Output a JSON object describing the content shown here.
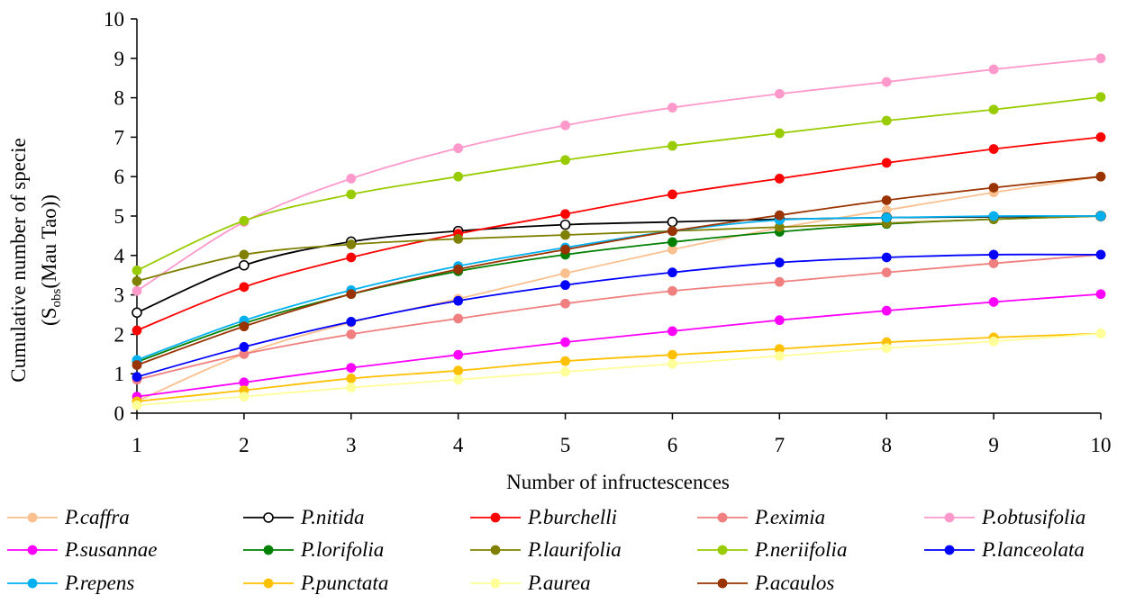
{
  "chart_data": {
    "type": "line",
    "title": "",
    "xlabel": "Number of infructescences",
    "ylabel_line1": "Cumulative number of specie",
    "ylabel_line2_prefix": "(S",
    "ylabel_line2_sub": "obs",
    "ylabel_line2_suffix": "(Mau Tao))",
    "x": [
      1,
      2,
      3,
      4,
      5,
      6,
      7,
      8,
      9,
      10
    ],
    "xlim": [
      1,
      10
    ],
    "ylim": [
      0,
      10
    ],
    "x_ticks": [
      "1",
      "2",
      "3",
      "4",
      "5",
      "6",
      "7",
      "8",
      "9",
      "10"
    ],
    "y_ticks": [
      "0",
      "1",
      "2",
      "3",
      "4",
      "5",
      "6",
      "7",
      "8",
      "9",
      "10"
    ],
    "grid": false,
    "legend_position": "bottom",
    "series": [
      {
        "name": "P.caffra",
        "color": "#FAC090",
        "hollow": false,
        "values": [
          0.3,
          1.5,
          2.3,
          2.9,
          3.55,
          4.15,
          4.7,
          5.15,
          5.6,
          6.0
        ]
      },
      {
        "name": "P.nitida",
        "color": "#000000",
        "hollow": true,
        "values": [
          2.55,
          3.75,
          4.35,
          4.62,
          4.78,
          4.85,
          4.92,
          4.96,
          4.98,
          5.0
        ]
      },
      {
        "name": "P.burchelli",
        "color": "#FF0000",
        "hollow": false,
        "values": [
          2.1,
          3.2,
          3.95,
          4.55,
          5.05,
          5.55,
          5.95,
          6.35,
          6.7,
          7.0
        ]
      },
      {
        "name": "P.eximia",
        "color": "#F08080",
        "hollow": false,
        "values": [
          0.85,
          1.5,
          2.0,
          2.4,
          2.78,
          3.1,
          3.33,
          3.57,
          3.8,
          4.02
        ]
      },
      {
        "name": "P.obtusifolia",
        "color": "#FF99CC",
        "hollow": false,
        "values": [
          3.1,
          4.85,
          5.95,
          6.72,
          7.3,
          7.75,
          8.1,
          8.4,
          8.72,
          9.0
        ]
      },
      {
        "name": "P.susannae",
        "color": "#FF00FF",
        "hollow": false,
        "values": [
          0.42,
          0.78,
          1.15,
          1.48,
          1.8,
          2.08,
          2.36,
          2.6,
          2.82,
          3.02
        ]
      },
      {
        "name": "P.lorifolia",
        "color": "#008000",
        "hollow": false,
        "values": [
          1.3,
          2.28,
          3.02,
          3.6,
          4.02,
          4.34,
          4.6,
          4.8,
          4.92,
          5.0
        ]
      },
      {
        "name": "P.laurifolia",
        "color": "#808000",
        "hollow": false,
        "values": [
          3.35,
          4.02,
          4.28,
          4.42,
          4.52,
          4.62,
          4.72,
          4.82,
          4.92,
          5.0
        ]
      },
      {
        "name": "P.neriifolia",
        "color": "#99CC00",
        "hollow": false,
        "values": [
          3.62,
          4.88,
          5.55,
          6.0,
          6.42,
          6.78,
          7.1,
          7.42,
          7.7,
          8.02
        ]
      },
      {
        "name": "P.lanceolata",
        "color": "#0000FF",
        "hollow": false,
        "values": [
          0.92,
          1.68,
          2.32,
          2.85,
          3.25,
          3.57,
          3.82,
          3.95,
          4.02,
          4.02
        ]
      },
      {
        "name": "P.repens",
        "color": "#00B0F0",
        "hollow": false,
        "values": [
          1.35,
          2.35,
          3.12,
          3.73,
          4.2,
          4.62,
          4.9,
          4.96,
          5.0,
          5.0
        ]
      },
      {
        "name": "P.punctata",
        "color": "#FFC000",
        "hollow": false,
        "values": [
          0.3,
          0.58,
          0.88,
          1.08,
          1.32,
          1.48,
          1.63,
          1.8,
          1.92,
          2.02
        ]
      },
      {
        "name": "P.aurea",
        "color": "#FFFF99",
        "hollow": false,
        "values": [
          0.2,
          0.42,
          0.65,
          0.85,
          1.05,
          1.25,
          1.45,
          1.65,
          1.82,
          2.02
        ]
      },
      {
        "name": "P.acaulos",
        "color": "#993300",
        "hollow": false,
        "values": [
          1.22,
          2.2,
          3.02,
          3.65,
          4.15,
          4.62,
          5.02,
          5.4,
          5.72,
          6.0
        ]
      }
    ]
  }
}
